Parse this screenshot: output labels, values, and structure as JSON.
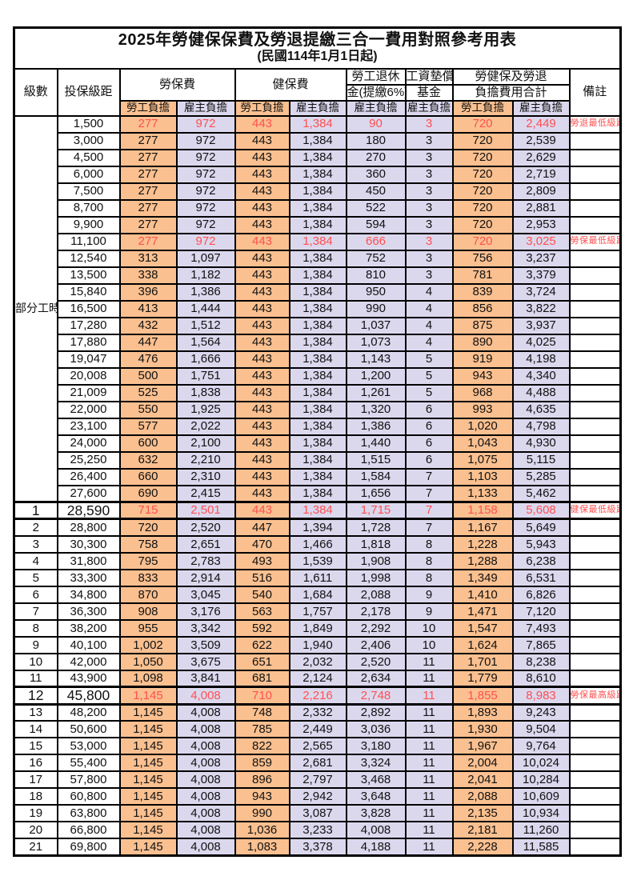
{
  "title": "2025年勞健保保費及勞退提繳三合一費用對照參考用表",
  "subtitle": "(民國114年1月1日起)",
  "colors": {
    "orange": "#FAC090",
    "lavender": "#DBD8EE",
    "red": "#FF5050",
    "border": "#000000"
  },
  "header": {
    "level": "級數",
    "bracket": "投保級距",
    "labor_ins": "勞保費",
    "health_ins": "健保費",
    "pension_line1": "勞工退休",
    "pension_line2": "金(提繳6%)",
    "wage_fund_line1": "工資墊償",
    "wage_fund_line2": "基金",
    "total_line1": "勞健保及勞退",
    "total_line2": "負擔費用合計",
    "remark": "備註",
    "employee": "勞工負擔",
    "employer": "雇主負擔"
  },
  "part_time": {
    "label": "部分工時",
    "row_span": 23
  },
  "rows": [
    {
      "level": "",
      "bracket": "1,500",
      "v": [
        "277",
        "972",
        "443",
        "1,384",
        "90",
        "3",
        "720",
        "2,449"
      ],
      "remark": "勞退最低級距",
      "red": true,
      "big": false
    },
    {
      "level": "",
      "bracket": "3,000",
      "v": [
        "277",
        "972",
        "443",
        "1,384",
        "180",
        "3",
        "720",
        "2,539"
      ],
      "remark": "",
      "red": false,
      "big": false
    },
    {
      "level": "",
      "bracket": "4,500",
      "v": [
        "277",
        "972",
        "443",
        "1,384",
        "270",
        "3",
        "720",
        "2,629"
      ],
      "remark": "",
      "red": false,
      "big": false
    },
    {
      "level": "",
      "bracket": "6,000",
      "v": [
        "277",
        "972",
        "443",
        "1,384",
        "360",
        "3",
        "720",
        "2,719"
      ],
      "remark": "",
      "red": false,
      "big": false
    },
    {
      "level": "",
      "bracket": "7,500",
      "v": [
        "277",
        "972",
        "443",
        "1,384",
        "450",
        "3",
        "720",
        "2,809"
      ],
      "remark": "",
      "red": false,
      "big": false
    },
    {
      "level": "",
      "bracket": "8,700",
      "v": [
        "277",
        "972",
        "443",
        "1,384",
        "522",
        "3",
        "720",
        "2,881"
      ],
      "remark": "",
      "red": false,
      "big": false
    },
    {
      "level": "",
      "bracket": "9,900",
      "v": [
        "277",
        "972",
        "443",
        "1,384",
        "594",
        "3",
        "720",
        "2,953"
      ],
      "remark": "",
      "red": false,
      "big": false
    },
    {
      "level": "",
      "bracket": "11,100",
      "v": [
        "277",
        "972",
        "443",
        "1,384",
        "666",
        "3",
        "720",
        "3,025"
      ],
      "remark": "勞保最低級距",
      "red": true,
      "big": false
    },
    {
      "level": "",
      "bracket": "12,540",
      "v": [
        "313",
        "1,097",
        "443",
        "1,384",
        "752",
        "3",
        "756",
        "3,237"
      ],
      "remark": "",
      "red": false,
      "big": false
    },
    {
      "level": "",
      "bracket": "13,500",
      "v": [
        "338",
        "1,182",
        "443",
        "1,384",
        "810",
        "3",
        "781",
        "3,379"
      ],
      "remark": "",
      "red": false,
      "big": false
    },
    {
      "level": "",
      "bracket": "15,840",
      "v": [
        "396",
        "1,386",
        "443",
        "1,384",
        "950",
        "4",
        "839",
        "3,724"
      ],
      "remark": "",
      "red": false,
      "big": false
    },
    {
      "level": "",
      "bracket": "16,500",
      "v": [
        "413",
        "1,444",
        "443",
        "1,384",
        "990",
        "4",
        "856",
        "3,822"
      ],
      "remark": "",
      "red": false,
      "big": false
    },
    {
      "level": "",
      "bracket": "17,280",
      "v": [
        "432",
        "1,512",
        "443",
        "1,384",
        "1,037",
        "4",
        "875",
        "3,937"
      ],
      "remark": "",
      "red": false,
      "big": false
    },
    {
      "level": "",
      "bracket": "17,880",
      "v": [
        "447",
        "1,564",
        "443",
        "1,384",
        "1,073",
        "4",
        "890",
        "4,025"
      ],
      "remark": "",
      "red": false,
      "big": false
    },
    {
      "level": "",
      "bracket": "19,047",
      "v": [
        "476",
        "1,666",
        "443",
        "1,384",
        "1,143",
        "5",
        "919",
        "4,198"
      ],
      "remark": "",
      "red": false,
      "big": false
    },
    {
      "level": "",
      "bracket": "20,008",
      "v": [
        "500",
        "1,751",
        "443",
        "1,384",
        "1,200",
        "5",
        "943",
        "4,340"
      ],
      "remark": "",
      "red": false,
      "big": false
    },
    {
      "level": "",
      "bracket": "21,009",
      "v": [
        "525",
        "1,838",
        "443",
        "1,384",
        "1,261",
        "5",
        "968",
        "4,488"
      ],
      "remark": "",
      "red": false,
      "big": false
    },
    {
      "level": "",
      "bracket": "22,000",
      "v": [
        "550",
        "1,925",
        "443",
        "1,384",
        "1,320",
        "6",
        "993",
        "4,635"
      ],
      "remark": "",
      "red": false,
      "big": false
    },
    {
      "level": "",
      "bracket": "23,100",
      "v": [
        "577",
        "2,022",
        "443",
        "1,384",
        "1,386",
        "6",
        "1,020",
        "4,798"
      ],
      "remark": "",
      "red": false,
      "big": false
    },
    {
      "level": "",
      "bracket": "24,000",
      "v": [
        "600",
        "2,100",
        "443",
        "1,384",
        "1,440",
        "6",
        "1,043",
        "4,930"
      ],
      "remark": "",
      "red": false,
      "big": false
    },
    {
      "level": "",
      "bracket": "25,250",
      "v": [
        "632",
        "2,210",
        "443",
        "1,384",
        "1,515",
        "6",
        "1,075",
        "5,115"
      ],
      "remark": "",
      "red": false,
      "big": false
    },
    {
      "level": "",
      "bracket": "26,400",
      "v": [
        "660",
        "2,310",
        "443",
        "1,384",
        "1,584",
        "7",
        "1,103",
        "5,285"
      ],
      "remark": "",
      "red": false,
      "big": false
    },
    {
      "level": "",
      "bracket": "27,600",
      "v": [
        "690",
        "2,415",
        "443",
        "1,384",
        "1,656",
        "7",
        "1,133",
        "5,462"
      ],
      "remark": "",
      "red": false,
      "big": false
    },
    {
      "level": "1",
      "bracket": "28,590",
      "v": [
        "715",
        "2,501",
        "443",
        "1,384",
        "1,715",
        "7",
        "1,158",
        "5,608"
      ],
      "remark": "健保最低級距",
      "red": true,
      "big": true
    },
    {
      "level": "2",
      "bracket": "28,800",
      "v": [
        "720",
        "2,520",
        "447",
        "1,394",
        "1,728",
        "7",
        "1,167",
        "5,649"
      ],
      "remark": "",
      "red": false,
      "big": false
    },
    {
      "level": "3",
      "bracket": "30,300",
      "v": [
        "758",
        "2,651",
        "470",
        "1,466",
        "1,818",
        "8",
        "1,228",
        "5,943"
      ],
      "remark": "",
      "red": false,
      "big": false
    },
    {
      "level": "4",
      "bracket": "31,800",
      "v": [
        "795",
        "2,783",
        "493",
        "1,539",
        "1,908",
        "8",
        "1,288",
        "6,238"
      ],
      "remark": "",
      "red": false,
      "big": false
    },
    {
      "level": "5",
      "bracket": "33,300",
      "v": [
        "833",
        "2,914",
        "516",
        "1,611",
        "1,998",
        "8",
        "1,349",
        "6,531"
      ],
      "remark": "",
      "red": false,
      "big": false
    },
    {
      "level": "6",
      "bracket": "34,800",
      "v": [
        "870",
        "3,045",
        "540",
        "1,684",
        "2,088",
        "9",
        "1,410",
        "6,826"
      ],
      "remark": "",
      "red": false,
      "big": false
    },
    {
      "level": "7",
      "bracket": "36,300",
      "v": [
        "908",
        "3,176",
        "563",
        "1,757",
        "2,178",
        "9",
        "1,471",
        "7,120"
      ],
      "remark": "",
      "red": false,
      "big": false
    },
    {
      "level": "8",
      "bracket": "38,200",
      "v": [
        "955",
        "3,342",
        "592",
        "1,849",
        "2,292",
        "10",
        "1,547",
        "7,493"
      ],
      "remark": "",
      "red": false,
      "big": false
    },
    {
      "level": "9",
      "bracket": "40,100",
      "v": [
        "1,002",
        "3,509",
        "622",
        "1,940",
        "2,406",
        "10",
        "1,624",
        "7,865"
      ],
      "remark": "",
      "red": false,
      "big": false
    },
    {
      "level": "10",
      "bracket": "42,000",
      "v": [
        "1,050",
        "3,675",
        "651",
        "2,032",
        "2,520",
        "11",
        "1,701",
        "8,238"
      ],
      "remark": "",
      "red": false,
      "big": false
    },
    {
      "level": "11",
      "bracket": "43,900",
      "v": [
        "1,098",
        "3,841",
        "681",
        "2,124",
        "2,634",
        "11",
        "1,779",
        "8,610"
      ],
      "remark": "",
      "red": false,
      "big": false
    },
    {
      "level": "12",
      "bracket": "45,800",
      "v": [
        "1,145",
        "4,008",
        "710",
        "2,216",
        "2,748",
        "11",
        "1,855",
        "8,983"
      ],
      "remark": "勞保最高級距",
      "red": true,
      "big": true
    },
    {
      "level": "13",
      "bracket": "48,200",
      "v": [
        "1,145",
        "4,008",
        "748",
        "2,332",
        "2,892",
        "11",
        "1,893",
        "9,243"
      ],
      "remark": "",
      "red": false,
      "big": false
    },
    {
      "level": "14",
      "bracket": "50,600",
      "v": [
        "1,145",
        "4,008",
        "785",
        "2,449",
        "3,036",
        "11",
        "1,930",
        "9,504"
      ],
      "remark": "",
      "red": false,
      "big": false
    },
    {
      "level": "15",
      "bracket": "53,000",
      "v": [
        "1,145",
        "4,008",
        "822",
        "2,565",
        "3,180",
        "11",
        "1,967",
        "9,764"
      ],
      "remark": "",
      "red": false,
      "big": false
    },
    {
      "level": "16",
      "bracket": "55,400",
      "v": [
        "1,145",
        "4,008",
        "859",
        "2,681",
        "3,324",
        "11",
        "2,004",
        "10,024"
      ],
      "remark": "",
      "red": false,
      "big": false
    },
    {
      "level": "17",
      "bracket": "57,800",
      "v": [
        "1,145",
        "4,008",
        "896",
        "2,797",
        "3,468",
        "11",
        "2,041",
        "10,284"
      ],
      "remark": "",
      "red": false,
      "big": false
    },
    {
      "level": "18",
      "bracket": "60,800",
      "v": [
        "1,145",
        "4,008",
        "943",
        "2,942",
        "3,648",
        "11",
        "2,088",
        "10,609"
      ],
      "remark": "",
      "red": false,
      "big": false
    },
    {
      "level": "19",
      "bracket": "63,800",
      "v": [
        "1,145",
        "4,008",
        "990",
        "3,087",
        "3,828",
        "11",
        "2,135",
        "10,934"
      ],
      "remark": "",
      "red": false,
      "big": false
    },
    {
      "level": "20",
      "bracket": "66,800",
      "v": [
        "1,145",
        "4,008",
        "1,036",
        "3,233",
        "4,008",
        "11",
        "2,181",
        "11,260"
      ],
      "remark": "",
      "red": false,
      "big": false
    },
    {
      "level": "21",
      "bracket": "69,800",
      "v": [
        "1,145",
        "4,008",
        "1,083",
        "3,378",
        "4,188",
        "11",
        "2,228",
        "11,585"
      ],
      "remark": "",
      "red": false,
      "big": false
    }
  ]
}
